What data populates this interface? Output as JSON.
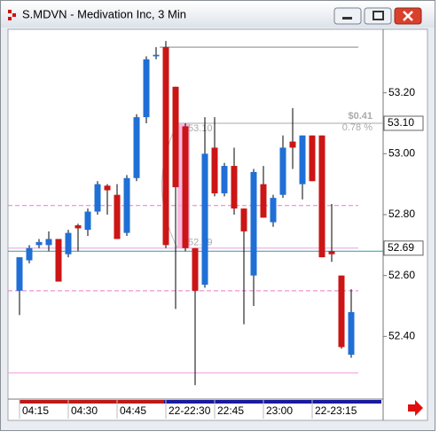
{
  "window_title": "S.MDVN - Medivation Inc, 3 Min",
  "chart_data": {
    "type": "candlestick",
    "categories": [
      "04:15",
      null,
      null,
      null,
      null,
      "04:30",
      null,
      null,
      null,
      null,
      "04:45",
      null,
      null,
      null,
      null,
      "22-22:30",
      null,
      null,
      null,
      null,
      "22:45",
      null,
      null,
      null,
      null,
      "23:00",
      null,
      null,
      null,
      null,
      "22-23:15",
      null,
      null,
      null,
      null
    ],
    "open": [
      52.55,
      52.65,
      52.7,
      52.7,
      52.72,
      52.67,
      52.765,
      52.75,
      52.81,
      52.895,
      52.865,
      52.74,
      52.92,
      53.12,
      53.32,
      53.35,
      53.22,
      53.09,
      52.69,
      52.57,
      53.02,
      52.87,
      52.96,
      52.82,
      52.6,
      52.9,
      52.775,
      52.865,
      53.04,
      52.9,
      53.06,
      53.06,
      52.68,
      52.6,
      52.34
    ],
    "high": [
      52.66,
      52.7,
      52.72,
      52.745,
      52.72,
      52.75,
      52.77,
      52.82,
      52.91,
      52.9,
      52.9,
      52.93,
      53.13,
      53.32,
      53.35,
      53.37,
      53.22,
      53.1,
      52.69,
      53.12,
      53.12,
      52.97,
      53.02,
      52.82,
      52.95,
      52.96,
      52.865,
      53.06,
      53.15,
      53.06,
      53.06,
      53.06,
      52.835,
      52.6,
      52.555
    ],
    "low": [
      52.47,
      52.64,
      52.69,
      52.68,
      52.58,
      52.66,
      52.68,
      52.73,
      52.8,
      52.8,
      52.72,
      52.73,
      52.91,
      53.1,
      53.31,
      52.69,
      52.49,
      52.68,
      52.24,
      52.56,
      52.86,
      52.86,
      52.8,
      52.44,
      52.5,
      52.79,
      52.76,
      52.855,
      52.95,
      52.85,
      52.91,
      52.66,
      52.645,
      52.36,
      52.33
    ],
    "close": [
      52.66,
      52.69,
      52.71,
      52.72,
      52.58,
      52.74,
      52.755,
      52.81,
      52.9,
      52.88,
      52.72,
      52.92,
      53.12,
      53.31,
      53.325,
      52.7,
      52.89,
      52.69,
      52.55,
      53.0,
      52.87,
      52.96,
      52.82,
      52.745,
      52.94,
      52.79,
      52.855,
      53.02,
      53.02,
      53.06,
      52.91,
      52.66,
      52.67,
      52.365,
      52.48
    ],
    "up_color": "#1f6fd6",
    "down_color": "#cc1515",
    "ylim": [
      52.2,
      53.4
    ],
    "yticks": [
      {
        "value": 53.2,
        "label": "53.20"
      },
      {
        "value": 53.0,
        "label": "53.00"
      },
      {
        "value": 52.8,
        "label": "52.80"
      },
      {
        "value": 52.6,
        "label": "52.60"
      },
      {
        "value": 52.4,
        "label": "52.40"
      }
    ],
    "price_markers": [
      {
        "value": 53.1,
        "label": "53.10"
      },
      {
        "value": 52.69,
        "label": "52.69"
      }
    ],
    "levels": [
      {
        "value": 53.35,
        "color": "#888888",
        "dash": false
      },
      {
        "value": 52.83,
        "color": "#e87ad0",
        "dash": true
      },
      {
        "value": 52.69,
        "color": "#f0a0e0",
        "dash": false
      },
      {
        "value": 52.68,
        "color": "#2aa0a0",
        "dash": false
      },
      {
        "value": 52.55,
        "color": "#e87ad0",
        "dash": true
      },
      {
        "value": 52.28,
        "color": "#f0a0e0",
        "dash": false
      }
    ],
    "measure": {
      "high": {
        "value": 53.1,
        "label": "53.10"
      },
      "low": {
        "value": 52.69,
        "label": "52.69"
      },
      "change": "$0.41",
      "percent": "0.78 %"
    }
  }
}
